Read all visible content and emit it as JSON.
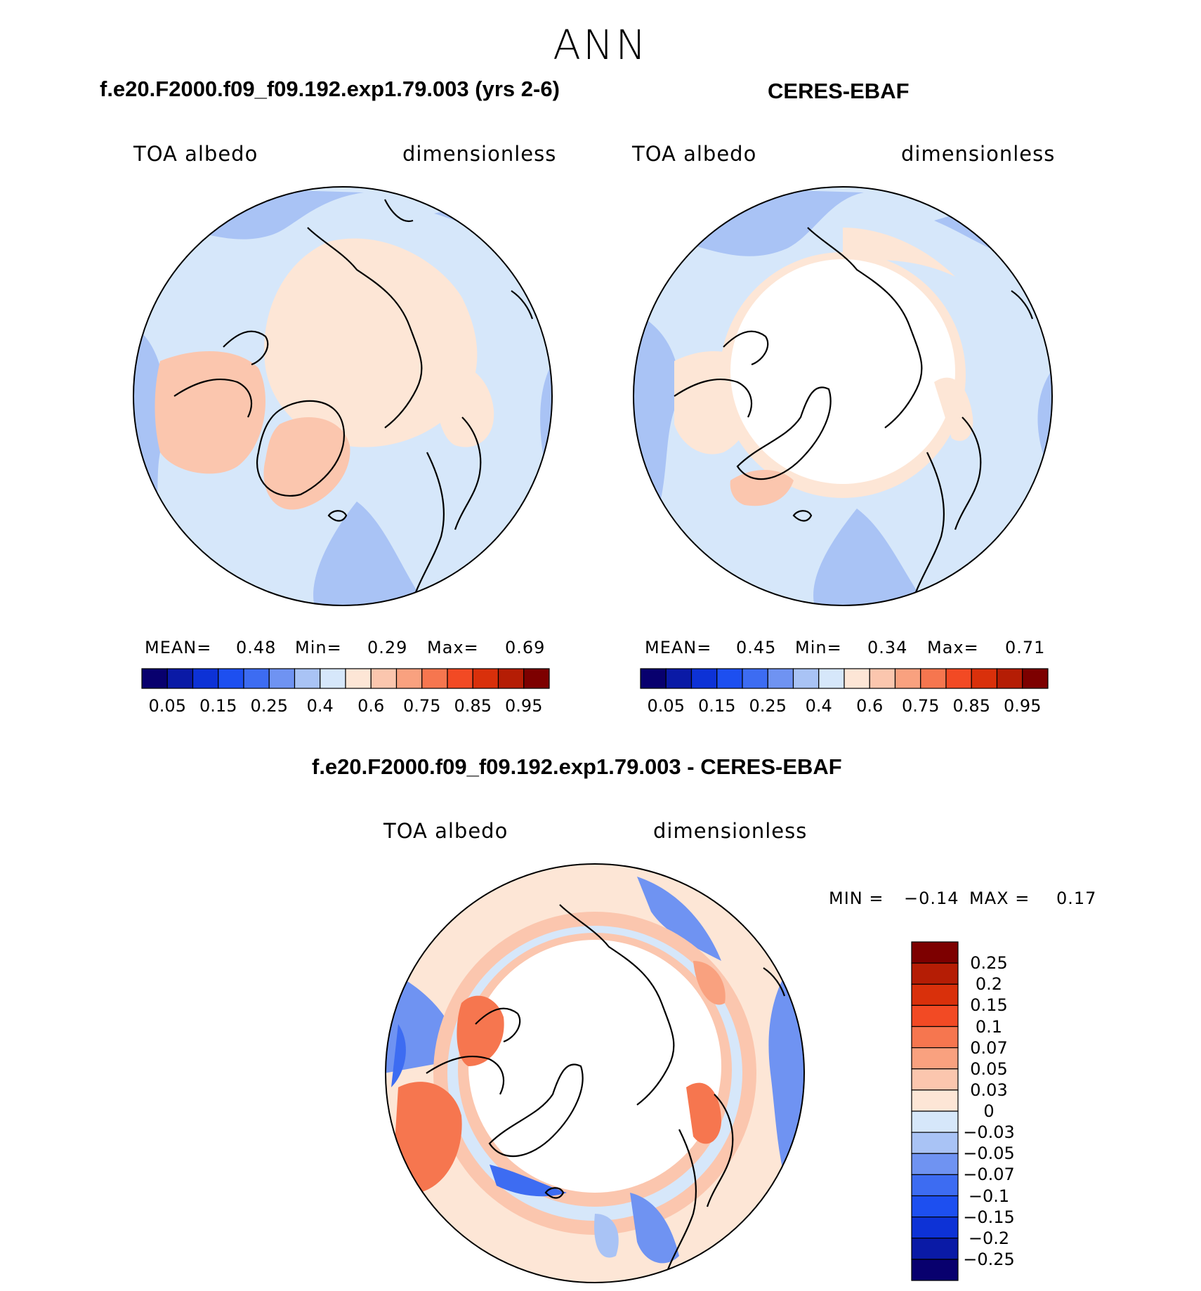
{
  "main_title": "ANN",
  "panels": [
    {
      "title": "f.e20.F2000.f09_f09.192.exp1.79.003 (yrs 2-6)",
      "left_label": "TOA albedo",
      "right_label": "dimensionless",
      "stats": {
        "mean_label": "MEAN=",
        "mean": "0.48",
        "min_label": "Min=",
        "min": "0.29",
        "max_label": "Max=",
        "max": "0.69"
      }
    },
    {
      "title": "CERES-EBAF",
      "left_label": "TOA albedo",
      "right_label": "dimensionless",
      "stats": {
        "mean_label": "MEAN=",
        "mean": "0.45",
        "min_label": "Min=",
        "min": "0.34",
        "max_label": "Max=",
        "max": "0.71"
      }
    }
  ],
  "colorbar": {
    "colors": [
      "#08006e",
      "#0a1aa6",
      "#0d32d6",
      "#1d4ff0",
      "#3d6cf2",
      "#6f93f2",
      "#a9c3f5",
      "#d6e7fa",
      "#fde6d6",
      "#fbc6ae",
      "#f9a17f",
      "#f6764f",
      "#f24a24",
      "#d9300b",
      "#b51d05",
      "#7d0000"
    ],
    "ticks": [
      "0.05",
      "0.15",
      "0.25",
      "0.4",
      "0.6",
      "0.75",
      "0.85",
      "0.95"
    ]
  },
  "diff_panel": {
    "title": "f.e20.F2000.f09_f09.192.exp1.79.003 - CERES-EBAF",
    "left_label": "TOA albedo",
    "right_label": "dimensionless",
    "min_label": "MIN =",
    "min": "−0.14",
    "max_label": "MAX =",
    "max": "0.17",
    "colorbar": {
      "colors_top_to_bottom": [
        "#7d0000",
        "#b51d05",
        "#d9300b",
        "#f24a24",
        "#f6764f",
        "#f9a17f",
        "#fbc6ae",
        "#fde6d6",
        "#d6e7fa",
        "#a9c3f5",
        "#6f93f2",
        "#3d6cf2",
        "#1d4ff0",
        "#0d32d6",
        "#0a1aa6",
        "#08006e"
      ],
      "ticks": [
        "0.25",
        "0.2",
        "0.15",
        "0.1",
        "0.07",
        "0.05",
        "0.03",
        "0",
        "−0.03",
        "−0.05",
        "−0.07",
        "−0.1",
        "−0.15",
        "−0.2",
        "−0.25"
      ]
    }
  }
}
